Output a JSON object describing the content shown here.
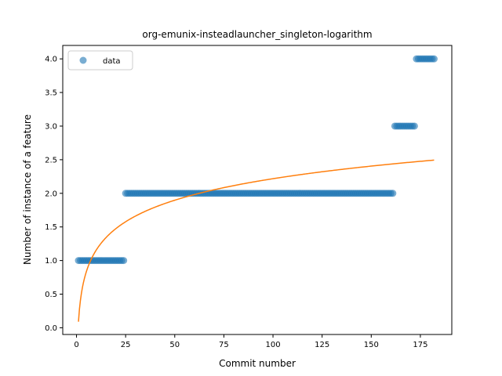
{
  "chart_data": {
    "type": "scatter",
    "title": "org-emunix-insteadlauncher_singleton-logarithm",
    "xlabel": "Commit number",
    "ylabel": "Number of instance of a feature",
    "xlim": [
      -7,
      191
    ],
    "ylim": [
      -0.1,
      4.2
    ],
    "xticks": [
      0,
      25,
      50,
      75,
      100,
      125,
      150,
      175
    ],
    "yticks": [
      0.0,
      0.5,
      1.0,
      1.5,
      2.0,
      2.5,
      3.0,
      3.5,
      4.0
    ],
    "grid": false,
    "legend": {
      "position": "top-left",
      "entries": [
        "data"
      ]
    },
    "series": [
      {
        "name": "data",
        "kind": "scatter",
        "color": "#1f77b4",
        "segments": [
          {
            "x_start": 1,
            "x_end": 24,
            "y": 1
          },
          {
            "x_start": 25,
            "x_end": 161,
            "y": 2
          },
          {
            "x_start": 162,
            "x_end": 172,
            "y": 3
          },
          {
            "x_start": 173,
            "x_end": 182,
            "y": 4
          }
        ]
      },
      {
        "name": "",
        "kind": "line",
        "color": "#ff7f0e",
        "function": "0.09 + 0.462 * ln(x)",
        "coefficients": {
          "a": 0.09,
          "b": 0.462
        },
        "x_range": [
          1,
          182
        ]
      }
    ]
  }
}
